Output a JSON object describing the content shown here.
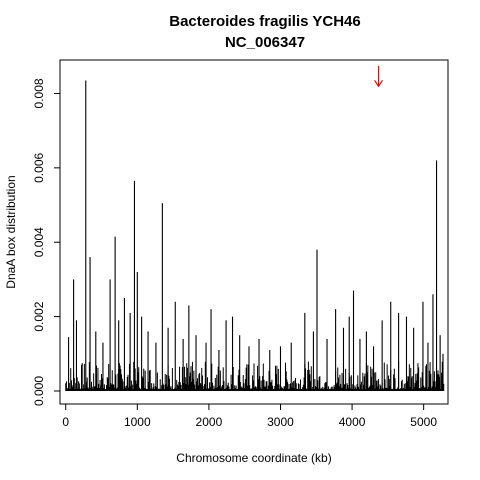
{
  "chart_data": {
    "type": "bar",
    "title": "Bacteroides fragilis YCH46",
    "subtitle": "NC_006347",
    "xlabel": "Chromosome coordinate (kb)",
    "ylabel": "DnaA box distribution",
    "xlim": [
      -80,
      5340
    ],
    "ylim": [
      -0.00035,
      0.0089
    ],
    "x_ticks": [
      0,
      1000,
      2000,
      3000,
      4000,
      5000
    ],
    "y_ticks": [
      0.0,
      0.002,
      0.004,
      0.006,
      0.008
    ],
    "x_tick_labels": [
      "0",
      "1000",
      "2000",
      "3000",
      "4000",
      "5000"
    ],
    "y_tick_labels": [
      "0.000",
      "0.002",
      "0.004",
      "0.006",
      "0.008"
    ],
    "grid": false,
    "legend": "none",
    "bar_color": "#000000",
    "origin_arrow": {
      "x": 4370,
      "y_top": 0.0085,
      "y_bottom": 0.0083,
      "color": "#ff0000"
    },
    "peaks": [
      {
        "x": 40,
        "y": 0.00145
      },
      {
        "x": 110,
        "y": 0.003
      },
      {
        "x": 150,
        "y": 0.0019
      },
      {
        "x": 280,
        "y": 0.00835
      },
      {
        "x": 340,
        "y": 0.0036
      },
      {
        "x": 420,
        "y": 0.0016
      },
      {
        "x": 520,
        "y": 0.0013
      },
      {
        "x": 620,
        "y": 0.003
      },
      {
        "x": 690,
        "y": 0.00415
      },
      {
        "x": 740,
        "y": 0.0019
      },
      {
        "x": 820,
        "y": 0.0025
      },
      {
        "x": 900,
        "y": 0.0021
      },
      {
        "x": 960,
        "y": 0.00565
      },
      {
        "x": 1000,
        "y": 0.0032
      },
      {
        "x": 1060,
        "y": 0.002
      },
      {
        "x": 1150,
        "y": 0.0016
      },
      {
        "x": 1260,
        "y": 0.0013
      },
      {
        "x": 1350,
        "y": 0.00505
      },
      {
        "x": 1430,
        "y": 0.0017
      },
      {
        "x": 1530,
        "y": 0.0024
      },
      {
        "x": 1640,
        "y": 0.0014
      },
      {
        "x": 1720,
        "y": 0.0023
      },
      {
        "x": 1820,
        "y": 0.0015
      },
      {
        "x": 1960,
        "y": 0.0013
      },
      {
        "x": 2030,
        "y": 0.0022
      },
      {
        "x": 2140,
        "y": 0.0011
      },
      {
        "x": 2240,
        "y": 0.0019
      },
      {
        "x": 2330,
        "y": 0.002
      },
      {
        "x": 2430,
        "y": 0.0015
      },
      {
        "x": 2560,
        "y": 0.0012
      },
      {
        "x": 2700,
        "y": 0.0014
      },
      {
        "x": 2850,
        "y": 0.0011
      },
      {
        "x": 3000,
        "y": 0.0012
      },
      {
        "x": 3150,
        "y": 0.0013
      },
      {
        "x": 3340,
        "y": 0.0021
      },
      {
        "x": 3460,
        "y": 0.0016
      },
      {
        "x": 3510,
        "y": 0.0038
      },
      {
        "x": 3650,
        "y": 0.0014
      },
      {
        "x": 3770,
        "y": 0.0022
      },
      {
        "x": 3880,
        "y": 0.0017
      },
      {
        "x": 3960,
        "y": 0.002
      },
      {
        "x": 4020,
        "y": 0.0027
      },
      {
        "x": 4110,
        "y": 0.0014
      },
      {
        "x": 4200,
        "y": 0.0016
      },
      {
        "x": 4300,
        "y": 0.0012
      },
      {
        "x": 4420,
        "y": 0.0019
      },
      {
        "x": 4540,
        "y": 0.0024
      },
      {
        "x": 4650,
        "y": 0.0021
      },
      {
        "x": 4760,
        "y": 0.002
      },
      {
        "x": 4860,
        "y": 0.0017
      },
      {
        "x": 4990,
        "y": 0.0024
      },
      {
        "x": 5060,
        "y": 0.0013
      },
      {
        "x": 5130,
        "y": 0.0026
      },
      {
        "x": 5180,
        "y": 0.0062
      },
      {
        "x": 5230,
        "y": 0.0015
      },
      {
        "x": 5270,
        "y": 0.001
      }
    ],
    "background_level": {
      "min": 5e-05,
      "max": 0.0008,
      "step_kb": 10,
      "x_start": 0,
      "x_end": 5280
    }
  }
}
